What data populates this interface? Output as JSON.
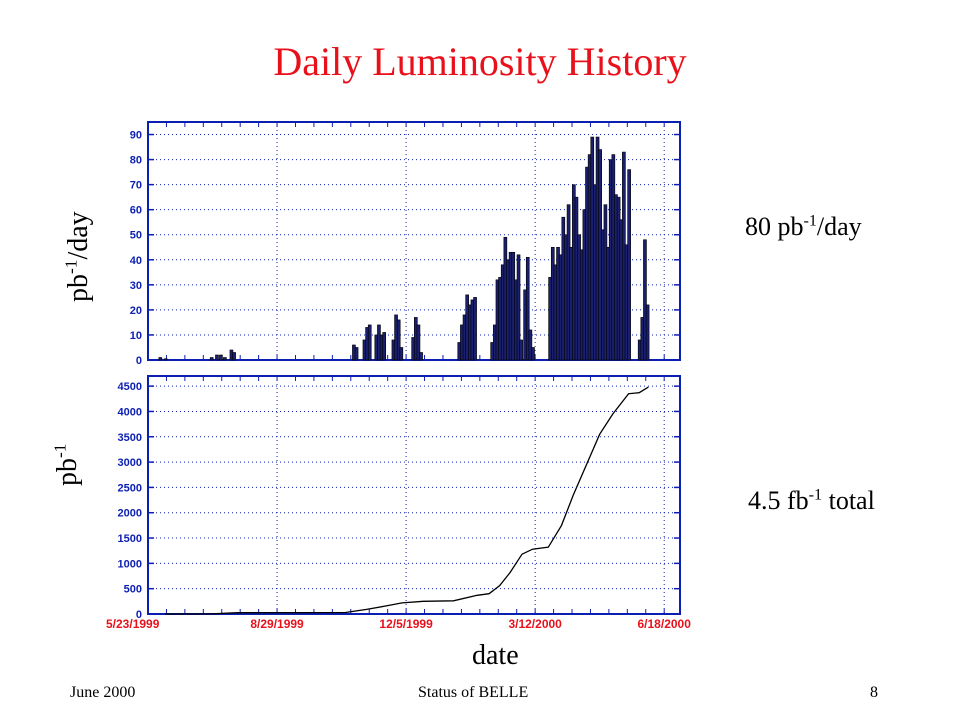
{
  "title": "Daily Luminosity History",
  "labels": {
    "top_ylabel": {
      "base": "pb",
      "sup": "-1",
      "rest": "/day"
    },
    "bottom_ylabel": {
      "base": "pb",
      "sup": "-1",
      "rest": ""
    },
    "xlabel": "date",
    "note_top": {
      "base": "80 pb",
      "sup": "-1",
      "rest": "/day"
    },
    "note_bottom": {
      "base": "4.5 fb",
      "sup": "-1",
      "rest": " total"
    }
  },
  "footer": {
    "left": "June 2000",
    "center": "Status of BELLE",
    "right": "8"
  },
  "colors": {
    "title": "#e8111b",
    "axis": "#0c1fb3",
    "grid": "#0c1fb3",
    "bar_fill": "#1a1f6e",
    "bar_edge": "#000000",
    "line": "#000000",
    "date_ticks": "#e8111b"
  },
  "chart_data": [
    {
      "type": "bar",
      "ylabel": "pb-1/day",
      "ylim": [
        0,
        95
      ],
      "yticks": [
        0,
        10,
        20,
        30,
        40,
        50,
        60,
        70,
        80,
        90
      ],
      "x_start": "5/23/1999",
      "x_end": "6/30/2000",
      "grid": true,
      "series": [
        {
          "values": [
            {
              "date": "1999-06-01",
              "value": 1
            },
            {
              "date": "1999-06-05",
              "value": 0.5
            },
            {
              "date": "1999-07-10",
              "value": 1
            },
            {
              "date": "1999-07-14",
              "value": 2
            },
            {
              "date": "1999-07-17",
              "value": 2
            },
            {
              "date": "1999-07-20",
              "value": 1
            },
            {
              "date": "1999-07-25",
              "value": 4
            },
            {
              "date": "1999-07-27",
              "value": 3
            },
            {
              "date": "1999-10-26",
              "value": 6
            },
            {
              "date": "1999-10-28",
              "value": 5
            },
            {
              "date": "1999-11-03",
              "value": 8
            },
            {
              "date": "1999-11-05",
              "value": 13
            },
            {
              "date": "1999-11-07",
              "value": 14
            },
            {
              "date": "1999-11-12",
              "value": 10
            },
            {
              "date": "1999-11-14",
              "value": 14
            },
            {
              "date": "1999-11-16",
              "value": 10
            },
            {
              "date": "1999-11-18",
              "value": 11
            },
            {
              "date": "1999-11-25",
              "value": 8
            },
            {
              "date": "1999-11-27",
              "value": 18
            },
            {
              "date": "1999-11-29",
              "value": 16
            },
            {
              "date": "1999-12-01",
              "value": 5
            },
            {
              "date": "1999-12-10",
              "value": 9
            },
            {
              "date": "1999-12-12",
              "value": 17
            },
            {
              "date": "1999-12-14",
              "value": 14
            },
            {
              "date": "1999-12-16",
              "value": 3
            },
            {
              "date": "2000-01-14",
              "value": 7
            },
            {
              "date": "2000-01-16",
              "value": 14
            },
            {
              "date": "2000-01-18",
              "value": 18
            },
            {
              "date": "2000-01-20",
              "value": 26
            },
            {
              "date": "2000-01-22",
              "value": 22
            },
            {
              "date": "2000-01-24",
              "value": 24
            },
            {
              "date": "2000-01-26",
              "value": 25
            },
            {
              "date": "2000-02-08",
              "value": 7
            },
            {
              "date": "2000-02-10",
              "value": 14
            },
            {
              "date": "2000-02-12",
              "value": 32
            },
            {
              "date": "2000-02-14",
              "value": 33
            },
            {
              "date": "2000-02-16",
              "value": 38
            },
            {
              "date": "2000-02-18",
              "value": 49
            },
            {
              "date": "2000-02-20",
              "value": 40
            },
            {
              "date": "2000-02-22",
              "value": 43
            },
            {
              "date": "2000-02-24",
              "value": 43
            },
            {
              "date": "2000-02-26",
              "value": 32
            },
            {
              "date": "2000-02-28",
              "value": 42
            },
            {
              "date": "2000-03-01",
              "value": 8
            },
            {
              "date": "2000-03-04",
              "value": 28
            },
            {
              "date": "2000-03-06",
              "value": 41
            },
            {
              "date": "2000-03-08",
              "value": 12
            },
            {
              "date": "2000-03-10",
              "value": 5
            },
            {
              "date": "2000-03-23",
              "value": 33
            },
            {
              "date": "2000-03-25",
              "value": 45
            },
            {
              "date": "2000-03-27",
              "value": 38
            },
            {
              "date": "2000-03-29",
              "value": 45
            },
            {
              "date": "2000-03-31",
              "value": 42
            },
            {
              "date": "2000-04-02",
              "value": 57
            },
            {
              "date": "2000-04-04",
              "value": 50
            },
            {
              "date": "2000-04-06",
              "value": 62
            },
            {
              "date": "2000-04-08",
              "value": 45
            },
            {
              "date": "2000-04-10",
              "value": 70
            },
            {
              "date": "2000-04-12",
              "value": 65
            },
            {
              "date": "2000-04-14",
              "value": 50
            },
            {
              "date": "2000-04-16",
              "value": 44
            },
            {
              "date": "2000-04-18",
              "value": 60
            },
            {
              "date": "2000-04-20",
              "value": 77
            },
            {
              "date": "2000-04-22",
              "value": 82
            },
            {
              "date": "2000-04-24",
              "value": 89
            },
            {
              "date": "2000-04-26",
              "value": 70
            },
            {
              "date": "2000-04-28",
              "value": 89
            },
            {
              "date": "2000-04-30",
              "value": 84
            },
            {
              "date": "2000-05-02",
              "value": 52
            },
            {
              "date": "2000-05-04",
              "value": 62
            },
            {
              "date": "2000-05-06",
              "value": 45
            },
            {
              "date": "2000-05-08",
              "value": 80
            },
            {
              "date": "2000-05-10",
              "value": 82
            },
            {
              "date": "2000-05-12",
              "value": 66
            },
            {
              "date": "2000-05-14",
              "value": 65
            },
            {
              "date": "2000-05-16",
              "value": 56
            },
            {
              "date": "2000-05-18",
              "value": 83
            },
            {
              "date": "2000-05-20",
              "value": 46
            },
            {
              "date": "2000-05-22",
              "value": 76
            },
            {
              "date": "2000-05-30",
              "value": 8
            },
            {
              "date": "2000-06-01",
              "value": 17
            },
            {
              "date": "2000-06-03",
              "value": 48
            },
            {
              "date": "2000-06-05",
              "value": 22
            }
          ]
        }
      ]
    },
    {
      "type": "line",
      "ylabel": "pb-1",
      "xlabel": "date",
      "ylim": [
        0,
        4700
      ],
      "yticks": [
        0,
        500,
        1000,
        1500,
        2000,
        2500,
        3000,
        3500,
        4000,
        4500
      ],
      "x_start": "5/23/1999",
      "x_end": "6/30/2000",
      "xticks": [
        "5/23/1999",
        "8/29/1999",
        "12/5/1999",
        "3/12/2000",
        "6/18/2000"
      ],
      "grid": true,
      "series": [
        {
          "values": [
            {
              "date": "1999-06-05",
              "value": 0
            },
            {
              "date": "1999-07-10",
              "value": 2
            },
            {
              "date": "1999-07-30",
              "value": 25
            },
            {
              "date": "1999-10-20",
              "value": 30
            },
            {
              "date": "1999-11-05",
              "value": 90
            },
            {
              "date": "1999-11-20",
              "value": 160
            },
            {
              "date": "1999-12-02",
              "value": 220
            },
            {
              "date": "1999-12-18",
              "value": 250
            },
            {
              "date": "2000-01-10",
              "value": 260
            },
            {
              "date": "2000-01-28",
              "value": 370
            },
            {
              "date": "2000-02-06",
              "value": 400
            },
            {
              "date": "2000-02-14",
              "value": 560
            },
            {
              "date": "2000-02-22",
              "value": 820
            },
            {
              "date": "2000-03-02",
              "value": 1180
            },
            {
              "date": "2000-03-10",
              "value": 1280
            },
            {
              "date": "2000-03-22",
              "value": 1320
            },
            {
              "date": "2000-04-01",
              "value": 1750
            },
            {
              "date": "2000-04-10",
              "value": 2350
            },
            {
              "date": "2000-04-20",
              "value": 2950
            },
            {
              "date": "2000-04-30",
              "value": 3550
            },
            {
              "date": "2000-05-10",
              "value": 3950
            },
            {
              "date": "2000-05-22",
              "value": 4350
            },
            {
              "date": "2000-05-30",
              "value": 4370
            },
            {
              "date": "2000-06-06",
              "value": 4480
            }
          ]
        }
      ]
    }
  ]
}
